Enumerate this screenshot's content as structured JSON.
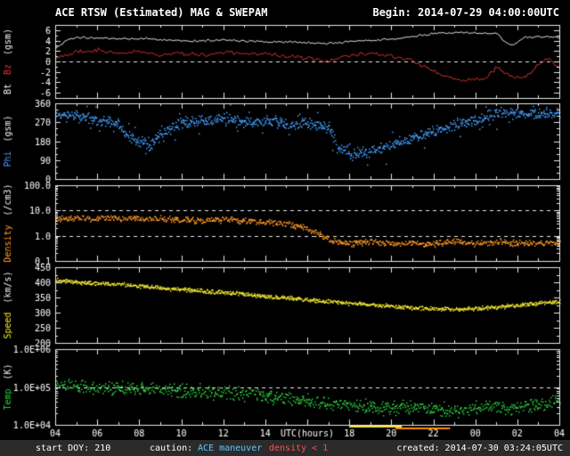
{
  "header": {
    "title": "ACE RTSW (Estimated) MAG & SWEPAM",
    "begin": "Begin: 2014-07-29 04:00:00UTC"
  },
  "footer": {
    "start_doy": "start DOY: 210",
    "caution_label": "caution:",
    "caution_maneuver": "ACE maneuver",
    "caution_density": "density < 1",
    "created": "created: 2014-07-30 03:24:05UTC"
  },
  "colors": {
    "background": "#000000",
    "frame": "#e8e8e8",
    "text": "#ffffff",
    "bt": "#f2f2f2",
    "bz": "#e03232",
    "phi": "#46a0ff",
    "density": "#ff9a28",
    "speed": "#f0e832",
    "temp": "#2ecc40",
    "maneuver_bar": "#f5e642",
    "density_bar": "#ff9100",
    "maneuver_text": "#5bc8ff",
    "density_text": "#ff5050"
  },
  "chart_data": {
    "type": "scatter",
    "title": "ACE RTSW (Estimated) MAG & SWEPAM",
    "begin_time": "2014-07-29 04:00:00UTC",
    "created_time": "2014-07-30 03:24:05UTC",
    "x_axis": {
      "label": "UTC(hours)",
      "start_utc": "04:00",
      "hours_span": 24,
      "tick_interval_hours": 2,
      "tick_labels": [
        "04",
        "06",
        "08",
        "10",
        "12",
        "14",
        "16",
        "18",
        "20",
        "22",
        "00",
        "02",
        "04"
      ]
    },
    "panels": [
      {
        "name": "bt-bz",
        "scale": "linear",
        "range": [
          -7,
          7
        ],
        "minor_step": 1,
        "dashed_at": [
          0
        ],
        "yticks": [
          {
            "value": 6,
            "label": "6"
          },
          {
            "value": 4,
            "label": "4"
          },
          {
            "value": 2,
            "label": "2"
          },
          {
            "value": 0,
            "label": "0"
          },
          {
            "value": -2,
            "label": "-2"
          },
          {
            "value": -4,
            "label": "-4"
          },
          {
            "value": -6,
            "label": "-6"
          }
        ],
        "ylabel_parts": [
          {
            "text": "Bt",
            "color": "#f2f2f2"
          },
          {
            "text": "Bz",
            "color": "#e03232"
          },
          {
            "text": "(gsm)",
            "color": "#f2f2f2"
          }
        ],
        "series": [
          {
            "name": "Bt",
            "unit": "nT",
            "color": "#f2f2f2",
            "style": "line",
            "noise": 0.25,
            "x": [
              0,
              0.5,
              1,
              2,
              3,
              4,
              5,
              6,
              7,
              8,
              9,
              10,
              11,
              12,
              13,
              14,
              15,
              16,
              17,
              18,
              19,
              20,
              21,
              21.3,
              21.8,
              22.3,
              23,
              24
            ],
            "y": [
              2.5,
              4.0,
              4.6,
              4.5,
              4.3,
              4.4,
              4.2,
              4.0,
              3.9,
              4.1,
              3.9,
              3.8,
              3.7,
              3.6,
              3.4,
              3.8,
              4.0,
              4.3,
              4.8,
              5.4,
              5.6,
              5.5,
              5.4,
              4.0,
              3.0,
              4.6,
              4.8,
              4.6
            ]
          },
          {
            "name": "Bz",
            "unit": "nT",
            "color": "#e03232",
            "style": "line",
            "noise": 0.5,
            "x": [
              0,
              1,
              2,
              3,
              4,
              5,
              6,
              7,
              8,
              9,
              10,
              11,
              12,
              13,
              14,
              15,
              16,
              17,
              17.5,
              18,
              18.6,
              19.5,
              20.5,
              21,
              21.7,
              22.4,
              23,
              23.5,
              24
            ],
            "y": [
              0.5,
              1.8,
              2.2,
              1.6,
              2.0,
              1.2,
              1.6,
              1.2,
              1.8,
              1.4,
              1.6,
              1.0,
              0.6,
              0.2,
              1.2,
              1.6,
              1.0,
              0.2,
              -1.0,
              -1.8,
              -3.0,
              -3.6,
              -3.2,
              -1.0,
              -2.8,
              -3.0,
              -0.5,
              0.5,
              -1.5
            ]
          }
        ]
      },
      {
        "name": "phi",
        "scale": "linear",
        "range": [
          0,
          360
        ],
        "minor_step": 30,
        "dashed_at": [],
        "yticks": [
          {
            "value": 360,
            "label": "360"
          },
          {
            "value": 270,
            "label": "270"
          },
          {
            "value": 180,
            "label": "180"
          },
          {
            "value": 90,
            "label": "90"
          },
          {
            "value": 0,
            "label": "0"
          }
        ],
        "ylabel_parts": [
          {
            "text": "Phi",
            "color": "#46a0ff"
          },
          {
            "text": "(gsm)",
            "color": "#f2f2f2"
          }
        ],
        "series": [
          {
            "name": "Phi",
            "unit": "deg",
            "color": "#46a0ff",
            "style": "dots",
            "noise": 30,
            "wrap": true,
            "outlier_prob": 0.12,
            "outlier_mult": 3,
            "extra": 0.7,
            "x": [
              0,
              1,
              2,
              3,
              3.5,
              4,
              4.5,
              5,
              6,
              7,
              8,
              9,
              10,
              11,
              12,
              13,
              13.5,
              14,
              15,
              16,
              17,
              18,
              19,
              20,
              21,
              22,
              23,
              24
            ],
            "y": [
              310,
              300,
              290,
              260,
              200,
              180,
              160,
              220,
              270,
              280,
              290,
              270,
              280,
              260,
              270,
              250,
              150,
              120,
              130,
              170,
              200,
              230,
              260,
              290,
              310,
              320,
              310,
              320
            ]
          }
        ]
      },
      {
        "name": "density",
        "scale": "log",
        "range": [
          0.1,
          100
        ],
        "dashed_at": [
          10,
          1
        ],
        "yticks": [
          {
            "value": 100,
            "label": "100.0"
          },
          {
            "value": 10,
            "label": "10.0"
          },
          {
            "value": 1,
            "label": "1.0"
          },
          {
            "value": 0.1,
            "label": "0.1"
          }
        ],
        "ylabel_parts": [
          {
            "text": "Density",
            "color": "#ff9a28"
          },
          {
            "text": "(/cm3)",
            "color": "#f2f2f2"
          }
        ],
        "series": [
          {
            "name": "Density",
            "unit": "/cm3",
            "color": "#ff9a28",
            "style": "dots",
            "noise": 0.15,
            "extra": 0.4,
            "x": [
              0,
              1,
              2,
              3,
              4,
              5,
              6,
              7,
              8,
              9,
              10,
              11,
              12,
              12.5,
              13,
              14,
              15,
              16,
              17,
              18,
              19,
              20,
              21,
              22,
              23,
              24
            ],
            "y": [
              4.5,
              5.5,
              5.0,
              5.2,
              4.8,
              5.0,
              4.5,
              4.2,
              4.5,
              4.0,
              3.5,
              3.0,
              2.0,
              1.2,
              0.7,
              0.5,
              0.6,
              0.5,
              0.55,
              0.5,
              0.6,
              0.5,
              0.6,
              0.55,
              0.5,
              0.6
            ]
          }
        ]
      },
      {
        "name": "speed",
        "scale": "linear",
        "range": [
          200,
          450
        ],
        "minor_step": 25,
        "dashed_at": [],
        "yticks": [
          {
            "value": 450,
            "label": "450"
          },
          {
            "value": 400,
            "label": "400"
          },
          {
            "value": 350,
            "label": "350"
          },
          {
            "value": 300,
            "label": "300"
          },
          {
            "value": 250,
            "label": "250"
          },
          {
            "value": 200,
            "label": "200"
          }
        ],
        "ylabel_parts": [
          {
            "text": "Speed",
            "color": "#f0e832"
          },
          {
            "text": "(km/s)",
            "color": "#f2f2f2"
          }
        ],
        "series": [
          {
            "name": "Speed",
            "unit": "km/s",
            "color": "#f0e832",
            "style": "dots",
            "noise": 8,
            "extra": 0.6,
            "x": [
              0,
              1,
              2,
              3,
              4,
              5,
              6,
              7,
              8,
              9,
              10,
              11,
              12,
              13,
              14,
              15,
              16,
              17,
              18,
              19,
              20,
              21,
              22,
              23,
              24
            ],
            "y": [
              408,
              402,
              398,
              396,
              390,
              383,
              378,
              372,
              368,
              362,
              355,
              350,
              344,
              338,
              332,
              328,
              322,
              318,
              315,
              312,
              315,
              320,
              326,
              332,
              338
            ]
          }
        ]
      },
      {
        "name": "temp",
        "scale": "log",
        "range": [
          10000,
          1000000
        ],
        "dashed_at": [
          100000
        ],
        "yticks": [
          {
            "value": 1000000,
            "label": "1.0E+06"
          },
          {
            "value": 100000,
            "label": "1.0E+05"
          },
          {
            "value": 10000,
            "label": "1.0E+04"
          }
        ],
        "ylabel_parts": [
          {
            "text": "Temp",
            "color": "#2ecc40"
          },
          {
            "text": "(K)",
            "color": "#f2f2f2"
          }
        ],
        "series": [
          {
            "name": "Temp",
            "unit": "K",
            "color": "#2ecc40",
            "style": "dots",
            "noise": 0.22,
            "extra": 0.5,
            "x": [
              0,
              1,
              2,
              3,
              4,
              5,
              6,
              7,
              8,
              9,
              10,
              11,
              12,
              13,
              14,
              15,
              16,
              17,
              18,
              19,
              20,
              21,
              22,
              23,
              24
            ],
            "y": [
              100000,
              110000,
              100000,
              90000,
              100000,
              90000,
              80000,
              83000,
              70000,
              63000,
              56000,
              50000,
              45000,
              40000,
              35000,
              32000,
              28000,
              32000,
              28000,
              25000,
              28000,
              32000,
              28000,
              35000,
              40000
            ]
          }
        ]
      }
    ],
    "event_bars": [
      {
        "label": "ACE maneuver",
        "color": "#f5e642",
        "start_hour_offset": 14,
        "end_hour_offset": 16.5
      },
      {
        "label": "density < 1",
        "color": "#ff9100",
        "start_hour_offset": 16.2,
        "end_hour_offset": 18.8
      }
    ]
  }
}
